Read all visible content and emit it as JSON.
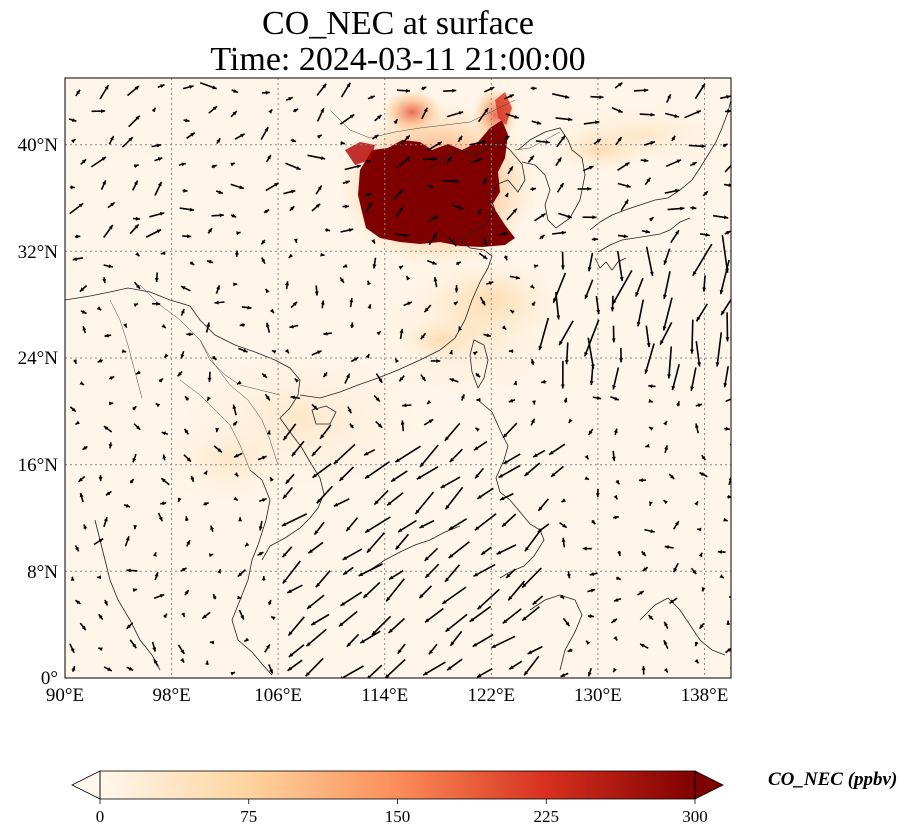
{
  "title": {
    "line1": "CO_NEC at surface",
    "line2": "Time: 2024-03-11 21:00:00"
  },
  "map": {
    "lon_range": [
      90,
      140
    ],
    "lat_range": [
      0,
      45
    ],
    "lon_ticks": [
      "90°E",
      "98°E",
      "106°E",
      "114°E",
      "122°E",
      "130°E",
      "138°E"
    ],
    "lat_ticks": [
      "0°",
      "8°N",
      "16°N",
      "24°N",
      "32°N",
      "40°N"
    ],
    "gridlines": "dotted",
    "hotspot_region": "North China Plain"
  },
  "colorbar": {
    "label": "CO_NEC (ppbv)",
    "ticks": [
      "0",
      "75",
      "150",
      "225",
      "300"
    ],
    "range": [
      0,
      300
    ],
    "extend": "both",
    "colormap": "OrRd",
    "colors": [
      "#fff7ec",
      "#fdd49e",
      "#fc8d59",
      "#d7301f",
      "#7f0000"
    ]
  }
}
